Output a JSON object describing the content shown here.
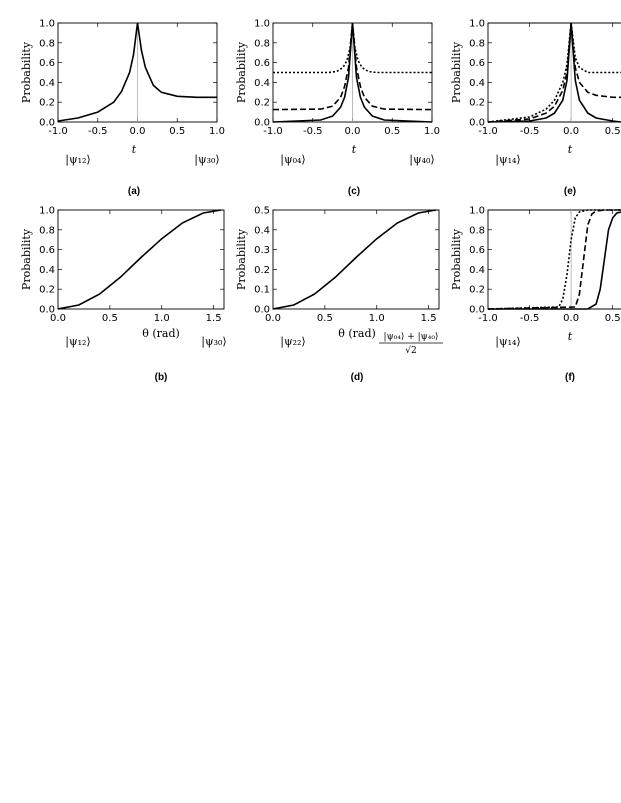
{
  "chart_data": [
    {
      "id": "a",
      "panel_label": "(a)",
      "type": "line",
      "ylabel": "Probability",
      "xlabel": "t",
      "xlim": [
        -1.0,
        1.0
      ],
      "ylim": [
        0.0,
        1.0
      ],
      "xticks": [
        "-1.0",
        "-0.5",
        "0.0",
        "0.5",
        "1.0"
      ],
      "yticks": [
        "0.0",
        "0.2",
        "0.4",
        "0.6",
        "0.8",
        "1.0"
      ],
      "reference_line_x": 0.0,
      "state_labels": {
        "left": "|ψ₁₂⟩",
        "right": "|ψ₃₀⟩"
      },
      "series": [
        {
          "style": "solid",
          "x": [
            -1.0,
            -0.75,
            -0.5,
            -0.3,
            -0.2,
            -0.1,
            -0.05,
            0.0,
            0.05,
            0.1,
            0.2,
            0.3,
            0.5,
            0.75,
            1.0
          ],
          "y": [
            0.01,
            0.04,
            0.1,
            0.2,
            0.31,
            0.5,
            0.68,
            1.0,
            0.72,
            0.55,
            0.37,
            0.3,
            0.26,
            0.25,
            0.25
          ]
        }
      ]
    },
    {
      "id": "c",
      "panel_label": "(c)",
      "type": "line",
      "ylabel": "Probability",
      "xlabel": "t",
      "xlim": [
        -1.0,
        1.0
      ],
      "ylim": [
        0.0,
        1.0
      ],
      "xticks": [
        "-1.0",
        "-0.5",
        "0.0",
        "0.5",
        "1.0"
      ],
      "yticks": [
        "0.0",
        "0.2",
        "0.4",
        "0.6",
        "0.8",
        "1.0"
      ],
      "reference_line_x": 0.0,
      "state_labels": {
        "left": "|ψ₀₄⟩",
        "right": "|ψ₄₀⟩"
      },
      "series": [
        {
          "style": "solid",
          "x": [
            -1.0,
            -0.4,
            -0.25,
            -0.15,
            -0.1,
            -0.05,
            0.0,
            0.05,
            0.1,
            0.15,
            0.25,
            0.4,
            1.0
          ],
          "y": [
            0.0,
            0.02,
            0.06,
            0.15,
            0.25,
            0.45,
            1.0,
            0.45,
            0.25,
            0.15,
            0.06,
            0.02,
            0.0
          ]
        },
        {
          "style": "dashed",
          "x": [
            -1.0,
            -0.4,
            -0.25,
            -0.15,
            -0.1,
            -0.05,
            0.0,
            0.05,
            0.1,
            0.15,
            0.25,
            0.4,
            1.0
          ],
          "y": [
            0.125,
            0.13,
            0.16,
            0.25,
            0.36,
            0.55,
            1.0,
            0.55,
            0.36,
            0.25,
            0.16,
            0.13,
            0.125
          ]
        },
        {
          "style": "dotted",
          "x": [
            -1.0,
            -0.3,
            -0.2,
            -0.12,
            -0.07,
            -0.03,
            0.0,
            0.03,
            0.07,
            0.12,
            0.2,
            0.3,
            1.0
          ],
          "y": [
            0.5,
            0.5,
            0.51,
            0.55,
            0.62,
            0.75,
            1.0,
            0.75,
            0.62,
            0.55,
            0.51,
            0.5,
            0.5
          ]
        }
      ]
    },
    {
      "id": "e",
      "panel_label": "(e)",
      "type": "line",
      "ylabel": "Probability",
      "xlabel": "t",
      "xlim": [
        -1.0,
        0.6
      ],
      "ylim": [
        0.0,
        1.0
      ],
      "xticks": [
        "-1.0",
        "-0.5",
        "0.0",
        "0.5"
      ],
      "yticks": [
        "0.0",
        "0.2",
        "0.4",
        "0.6",
        "0.8",
        "1.0"
      ],
      "reference_line_x": 0.0,
      "state_labels": {
        "left": "|ψ₁₄⟩",
        "right": ""
      },
      "series": [
        {
          "style": "solid",
          "x": [
            -1.0,
            -0.5,
            -0.3,
            -0.2,
            -0.1,
            -0.05,
            0.0,
            0.05,
            0.1,
            0.2,
            0.3,
            0.5,
            0.6
          ],
          "y": [
            0.0,
            0.01,
            0.04,
            0.09,
            0.22,
            0.42,
            1.0,
            0.42,
            0.22,
            0.09,
            0.04,
            0.01,
            0.0
          ]
        },
        {
          "style": "dashed",
          "x": [
            -1.0,
            -0.5,
            -0.3,
            -0.2,
            -0.1,
            -0.05,
            0.0,
            0.05,
            0.1,
            0.2,
            0.3,
            0.5,
            0.6
          ],
          "y": [
            0.0,
            0.03,
            0.09,
            0.16,
            0.32,
            0.5,
            1.0,
            0.55,
            0.4,
            0.3,
            0.27,
            0.25,
            0.25
          ]
        },
        {
          "style": "dotted",
          "x": [
            -1.0,
            -0.5,
            -0.3,
            -0.2,
            -0.1,
            -0.05,
            0.0,
            0.05,
            0.1,
            0.2,
            0.3,
            0.5,
            0.6
          ],
          "y": [
            0.0,
            0.05,
            0.13,
            0.22,
            0.4,
            0.58,
            1.0,
            0.65,
            0.55,
            0.5,
            0.5,
            0.5,
            0.5
          ]
        }
      ]
    },
    {
      "id": "b",
      "panel_label": "(b)",
      "type": "line",
      "ylabel": "Probability",
      "xlabel": "θ (rad)",
      "xlim": [
        0.0,
        1.6
      ],
      "ylim": [
        0.0,
        1.0
      ],
      "xticks": [
        "0.0",
        "0.5",
        "1.0",
        "1.5"
      ],
      "yticks": [
        "0.0",
        "0.2",
        "0.4",
        "0.6",
        "0.8",
        "1.0"
      ],
      "state_labels": {
        "left": "|ψ₁₂⟩",
        "right": "|ψ₃₀⟩"
      },
      "series": [
        {
          "style": "solid",
          "x": [
            0.0,
            0.2,
            0.4,
            0.6,
            0.8,
            1.0,
            1.2,
            1.4,
            1.5708
          ],
          "y": [
            0.0,
            0.04,
            0.15,
            0.32,
            0.52,
            0.71,
            0.87,
            0.97,
            1.0
          ]
        }
      ]
    },
    {
      "id": "d",
      "panel_label": "(d)",
      "type": "line",
      "ylabel": "Probability",
      "xlabel": "θ (rad)",
      "xlim": [
        0.0,
        1.6
      ],
      "ylim": [
        0.0,
        0.5
      ],
      "xticks": [
        "0.0",
        "0.5",
        "1.0",
        "1.5"
      ],
      "yticks": [
        "0.0",
        "0.1",
        "0.2",
        "0.3",
        "0.4",
        "0.5"
      ],
      "state_labels": {
        "left": "|ψ₂₂⟩",
        "right_numerator": "|ψ₀₄⟩ + |ψ₄₀⟩",
        "right_denominator": "√2"
      },
      "series": [
        {
          "style": "solid",
          "x": [
            0.0,
            0.2,
            0.4,
            0.6,
            0.8,
            1.0,
            1.2,
            1.4,
            1.5708
          ],
          "y": [
            0.0,
            0.02,
            0.075,
            0.16,
            0.26,
            0.355,
            0.435,
            0.485,
            0.5
          ]
        }
      ]
    },
    {
      "id": "f",
      "panel_label": "(f)",
      "type": "line",
      "ylabel": "Probability",
      "xlabel": "t",
      "xlim": [
        -1.0,
        0.6
      ],
      "ylim": [
        0.0,
        1.0
      ],
      "xticks": [
        "-1.0",
        "-0.5",
        "0.0",
        "0.5"
      ],
      "yticks": [
        "0.0",
        "0.2",
        "0.4",
        "0.6",
        "0.8",
        "1.0"
      ],
      "reference_line_x": 0.0,
      "state_labels": {
        "left": "|ψ₁₄⟩",
        "right": ""
      },
      "series": [
        {
          "style": "solid",
          "x": [
            -1.0,
            0.2,
            0.3,
            0.35,
            0.4,
            0.45,
            0.5,
            0.55,
            0.6
          ],
          "y": [
            0.0,
            0.0,
            0.05,
            0.2,
            0.5,
            0.8,
            0.92,
            0.97,
            0.98
          ]
        },
        {
          "style": "dashed",
          "x": [
            -1.0,
            0.05,
            0.1,
            0.15,
            0.2,
            0.25,
            0.3,
            0.4,
            0.6
          ],
          "y": [
            0.0,
            0.02,
            0.15,
            0.5,
            0.85,
            0.96,
            0.99,
            1.0,
            1.0
          ]
        },
        {
          "style": "dotted",
          "x": [
            -1.0,
            -0.15,
            -0.1,
            -0.05,
            0.0,
            0.05,
            0.1,
            0.2,
            0.6
          ],
          "y": [
            0.0,
            0.02,
            0.1,
            0.35,
            0.7,
            0.92,
            0.98,
            1.0,
            1.0
          ]
        }
      ]
    }
  ]
}
